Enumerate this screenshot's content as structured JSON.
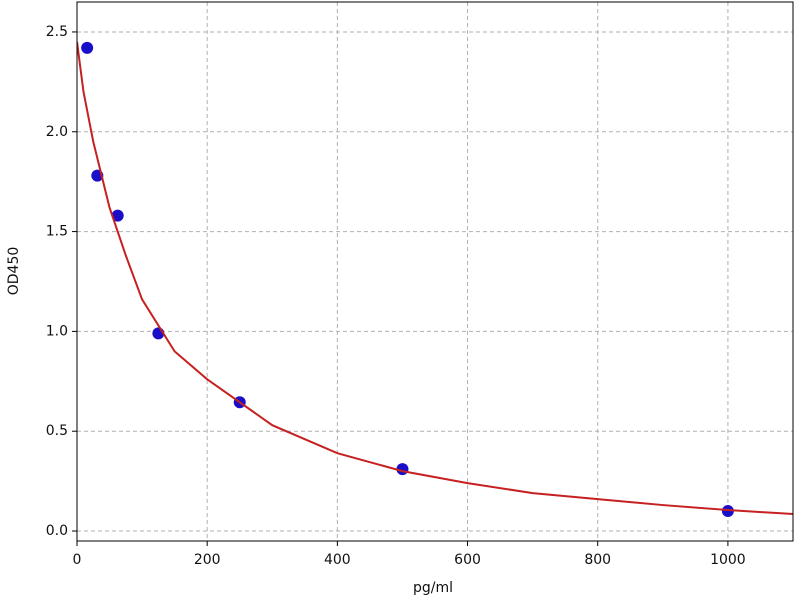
{
  "chart_data": {
    "type": "scatter",
    "xlabel": "pg/ml",
    "ylabel": "OD450",
    "xlim": [
      0,
      1100
    ],
    "ylim": [
      -0.05,
      2.65
    ],
    "xticks": [
      0,
      200,
      400,
      600,
      800,
      1000
    ],
    "yticks": [
      {
        "value": 0,
        "label": "0.0"
      },
      0.5,
      {
        "value": 1,
        "label": "1.0"
      },
      1.5,
      {
        "value": 2,
        "label": "2.0"
      },
      2.5
    ],
    "grid": true,
    "series": [
      {
        "type": "scatter",
        "color": "#1a0fc8",
        "x": [
          15.6,
          31.25,
          62.5,
          125,
          250,
          500,
          1000
        ],
        "values": [
          2.42,
          1.78,
          1.58,
          0.99,
          0.645,
          0.31,
          0.1
        ]
      },
      {
        "type": "line",
        "color": "#c62020",
        "x": [
          0,
          10,
          25,
          50,
          75,
          100,
          150,
          200,
          300,
          400,
          500,
          600,
          700,
          800,
          900,
          1000,
          1100
        ],
        "values": [
          2.45,
          2.2,
          1.95,
          1.62,
          1.38,
          1.16,
          0.9,
          0.76,
          0.53,
          0.39,
          0.3,
          0.24,
          0.19,
          0.16,
          0.13,
          0.105,
          0.085
        ]
      }
    ]
  }
}
